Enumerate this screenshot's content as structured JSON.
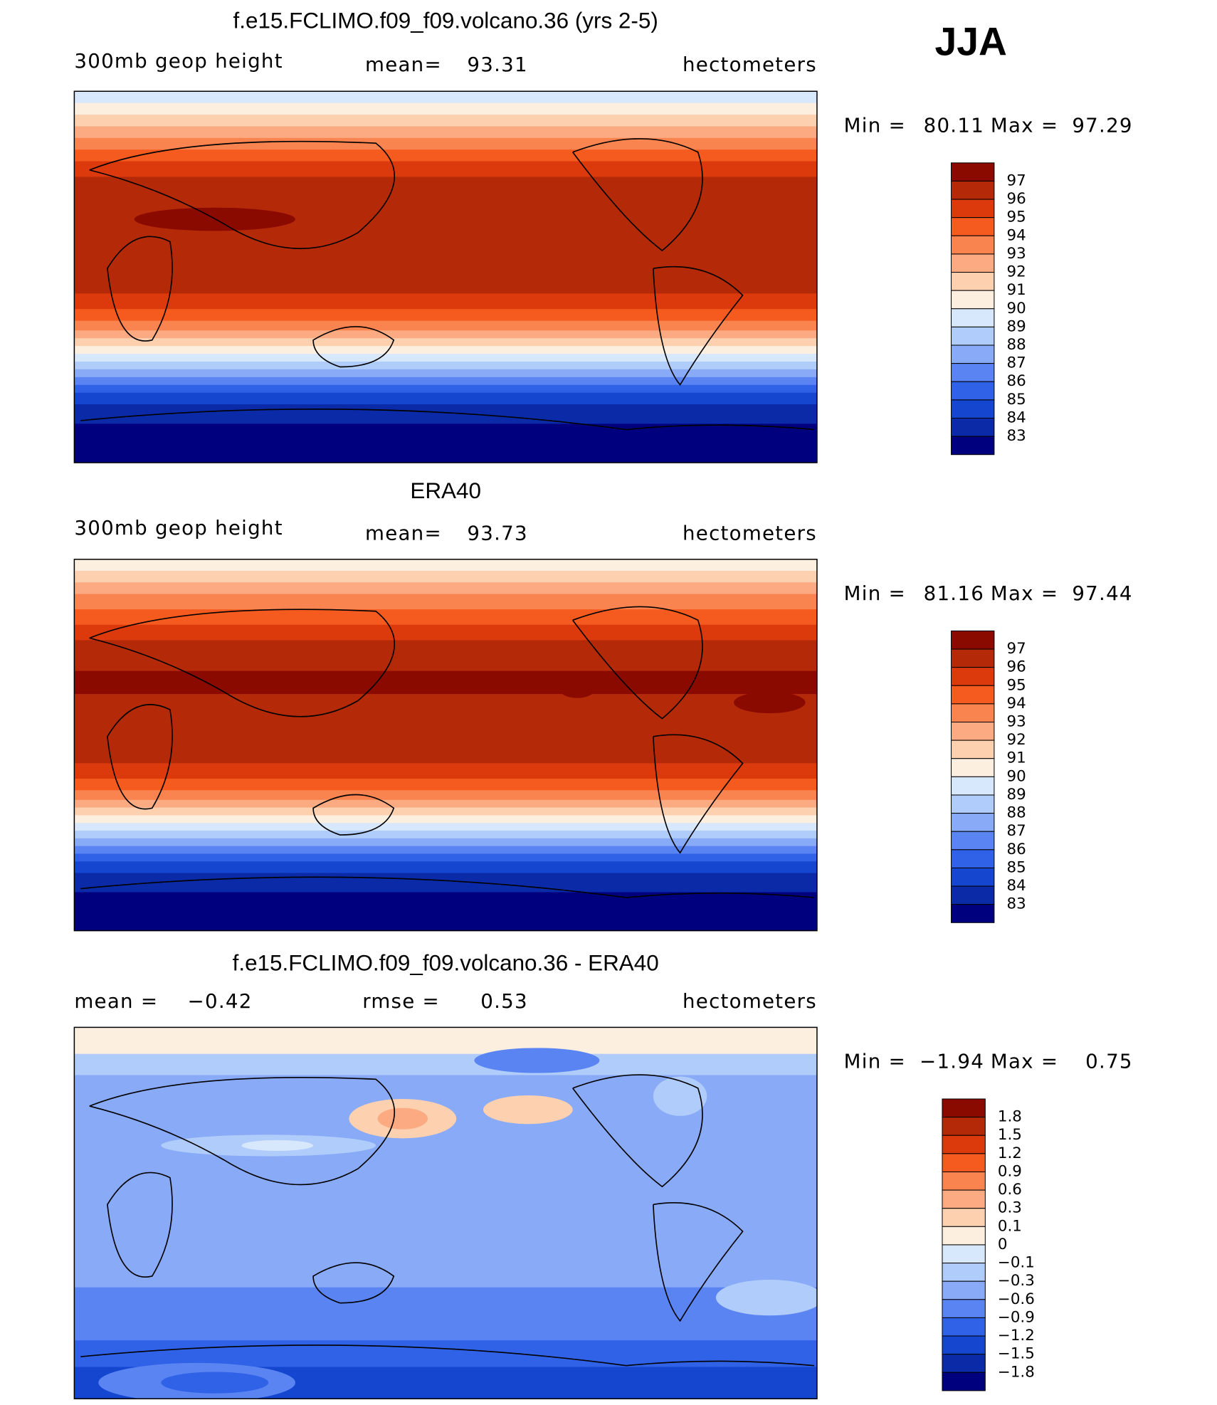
{
  "header": {
    "season": "JJA"
  },
  "panels": [
    {
      "title": "f.e15.FCLIMO.f09_f09.volcano.36 (yrs 2-5)",
      "left_label": "300mb geop height",
      "center_label": "mean=",
      "center_value": "93.31",
      "units": "hectometers",
      "min_label": "Min =",
      "min": "80.11",
      "max_label": "Max =",
      "max": "97.29",
      "colorbar": {
        "labels": [
          "97",
          "96",
          "95",
          "94",
          "93",
          "92",
          "91",
          "90",
          "89",
          "88",
          "87",
          "86",
          "85",
          "84",
          "83"
        ],
        "colors": [
          "#8b0a00",
          "#b42a08",
          "#dc3a0c",
          "#f55a1e",
          "#fa8450",
          "#fcaa82",
          "#fdd0b0",
          "#fdefe0",
          "#d8e8fc",
          "#b0ccfa",
          "#88aaf7",
          "#5a84f2",
          "#3062e8",
          "#1446d0",
          "#0a2aa8",
          "#00007f"
        ]
      }
    },
    {
      "title": "ERA40",
      "left_label": "300mb geop height",
      "center_label": "mean=",
      "center_value": "93.73",
      "units": "hectometers",
      "min_label": "Min =",
      "min": "81.16",
      "max_label": "Max =",
      "max": "97.44",
      "colorbar": {
        "labels": [
          "97",
          "96",
          "95",
          "94",
          "93",
          "92",
          "91",
          "90",
          "89",
          "88",
          "87",
          "86",
          "85",
          "84",
          "83"
        ],
        "colors": [
          "#8b0a00",
          "#b42a08",
          "#dc3a0c",
          "#f55a1e",
          "#fa8450",
          "#fcaa82",
          "#fdd0b0",
          "#fdefe0",
          "#d8e8fc",
          "#b0ccfa",
          "#88aaf7",
          "#5a84f2",
          "#3062e8",
          "#1446d0",
          "#0a2aa8",
          "#00007f"
        ]
      }
    },
    {
      "title": "f.e15.FCLIMO.f09_f09.volcano.36 - ERA40",
      "left_label": "mean =",
      "left_value": "−0.42",
      "center_label": "rmse =",
      "center_value": "0.53",
      "units": "hectometers",
      "min_label": "Min =",
      "min": "−1.94",
      "max_label": "Max =",
      "max": "0.75",
      "colorbar": {
        "labels": [
          "1.8",
          "1.5",
          "1.2",
          "0.9",
          "0.6",
          "0.3",
          "0.1",
          "0",
          "−0.1",
          "−0.3",
          "−0.6",
          "−0.9",
          "−1.2",
          "−1.5",
          "−1.8"
        ],
        "colors": [
          "#8b0a00",
          "#b42a08",
          "#dc3a0c",
          "#f55a1e",
          "#fa8450",
          "#fcaa82",
          "#fdd0b0",
          "#fdefe0",
          "#d8e8fc",
          "#b0ccfa",
          "#88aaf7",
          "#5a84f2",
          "#3062e8",
          "#1446d0",
          "#0a2aa8",
          "#00007f"
        ]
      }
    }
  ]
}
